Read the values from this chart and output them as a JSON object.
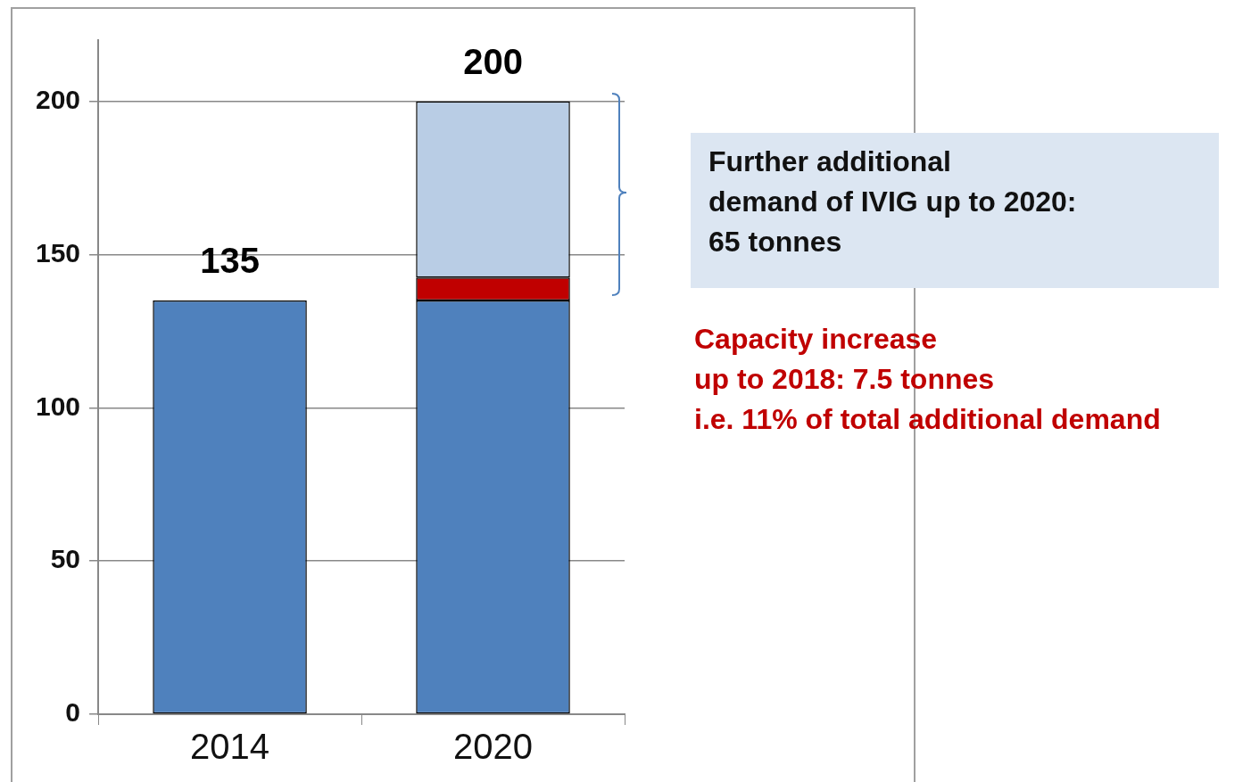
{
  "chart_data": {
    "type": "bar",
    "stacked": true,
    "categories": [
      "2014",
      "2020"
    ],
    "series": [
      {
        "color": "#4f81bd",
        "values": [
          135,
          135
        ]
      },
      {
        "color": "#c00000",
        "values": [
          null,
          7.5
        ]
      },
      {
        "color": "#b9cde5",
        "values": [
          null,
          57.5
        ]
      }
    ],
    "totals": [
      "135",
      "200"
    ],
    "ylim": [
      0,
      220
    ],
    "yticks": [
      0,
      50,
      100,
      150,
      200
    ],
    "grid": "y",
    "legend": false,
    "annotations": [
      "Further additional\ndemand of IVIG up to 2020:\n65 tonnes",
      "Capacity increase\nup to 2018: 7.5 tonnes\ni.e. 11% of total additional demand"
    ]
  }
}
